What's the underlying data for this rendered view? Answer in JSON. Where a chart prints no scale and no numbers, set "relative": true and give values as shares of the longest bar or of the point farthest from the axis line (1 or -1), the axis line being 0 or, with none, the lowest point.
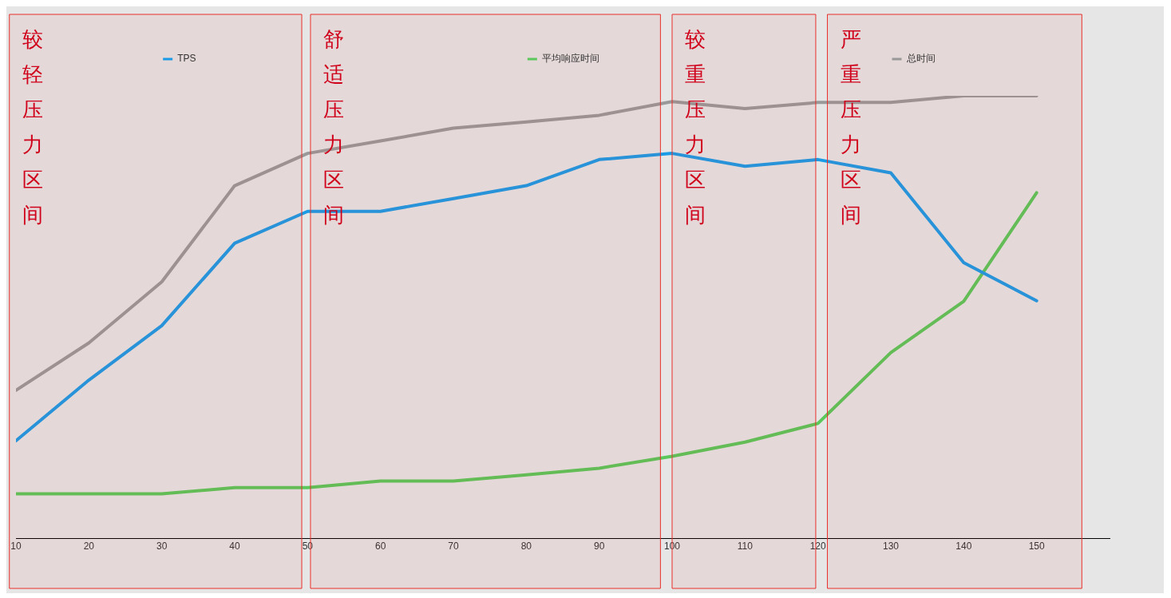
{
  "chart_data": {
    "type": "line",
    "relative": true,
    "legend": "top",
    "marker": "none",
    "line_style": "solid",
    "x": [
      10,
      20,
      30,
      40,
      50,
      60,
      70,
      80,
      90,
      100,
      110,
      120,
      130,
      140,
      150
    ],
    "xlim": [
      10,
      160
    ],
    "xticks": [
      10,
      20,
      30,
      40,
      50,
      60,
      70,
      80,
      90,
      100,
      110,
      120,
      130,
      140,
      150
    ],
    "series": [
      {
        "name": "TPS",
        "color": "#1a9be6",
        "values": [
          0.221,
          0.358,
          0.481,
          0.667,
          0.739,
          0.739,
          0.768,
          0.797,
          0.856,
          0.87,
          0.841,
          0.856,
          0.826,
          0.623,
          0.537
        ]
      },
      {
        "name": "平均响应时间",
        "color": "#5ac85a",
        "values": [
          0.101,
          0.101,
          0.101,
          0.115,
          0.115,
          0.13,
          0.13,
          0.144,
          0.159,
          0.186,
          0.218,
          0.26,
          0.42,
          0.536,
          0.781
        ]
      },
      {
        "name": "总时间",
        "color": "#999999",
        "values": [
          0.335,
          0.442,
          0.58,
          0.797,
          0.87,
          0.898,
          0.927,
          0.941,
          0.956,
          0.987,
          0.971,
          0.985,
          0.985,
          1,
          1
        ]
      }
    ],
    "bands": [
      {
        "axis": "x",
        "from": 9.1,
        "to": 49.2,
        "label": "较轻压力区间",
        "color": "#e8302a"
      },
      {
        "axis": "x",
        "from": 50.4,
        "to": 98.4,
        "label": "舒适压力区间",
        "color": "#e8302a"
      },
      {
        "axis": "x",
        "from": 100,
        "to": 119.7,
        "label": "较重压力区间",
        "color": "#e8302a"
      },
      {
        "axis": "x",
        "from": 121.3,
        "to": 156.2,
        "label": "严重压力区间",
        "color": "#e8302a"
      }
    ]
  }
}
